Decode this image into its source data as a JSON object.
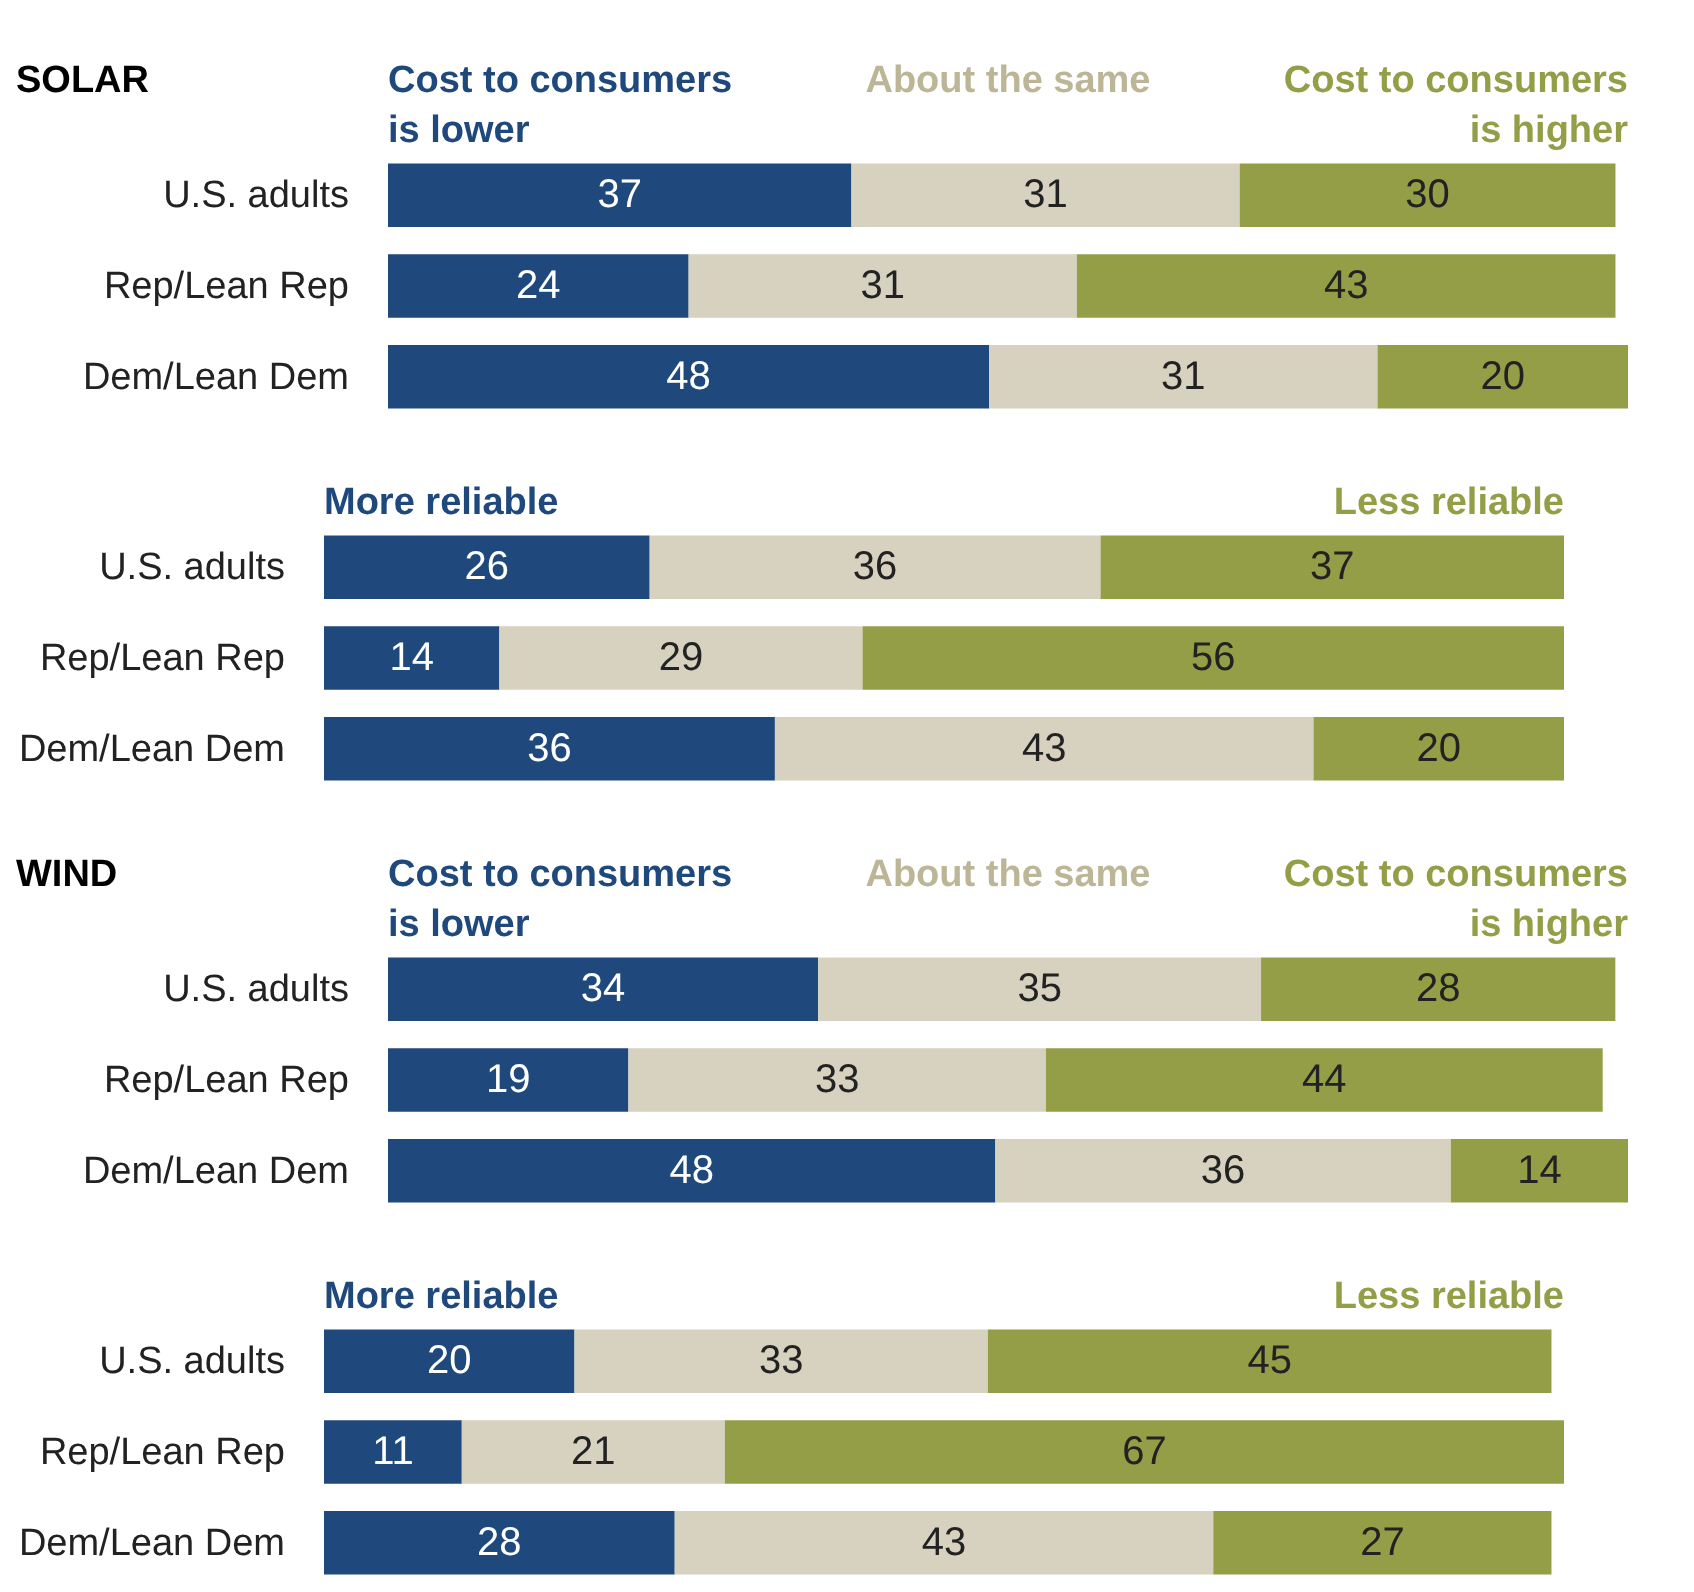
{
  "chart_data": [
    {
      "type": "bar",
      "orientation": "horizontal",
      "stacked": true,
      "title": "SOLAR",
      "categories": [
        "U.S. adults",
        "Rep/Lean Rep",
        "Dem/Lean Dem"
      ],
      "tick_labels": "y",
      "data_labels": true,
      "legend": "top",
      "series": [
        {
          "name": "Cost to consumers is lower",
          "color": "#1f497d",
          "values": [
            37,
            24,
            48
          ]
        },
        {
          "name": "About the same",
          "color": "#d6d2bf",
          "values": [
            31,
            31,
            31
          ]
        },
        {
          "name": "Cost to consumers is higher",
          "color": "#949e47",
          "values": [
            30,
            43,
            20
          ]
        }
      ]
    },
    {
      "type": "bar",
      "orientation": "horizontal",
      "stacked": true,
      "categories": [
        "U.S. adults",
        "Rep/Lean Rep",
        "Dem/Lean Dem"
      ],
      "tick_labels": "y",
      "data_labels": true,
      "legend": "top",
      "series": [
        {
          "name": "More reliable",
          "color": "#1f497d",
          "values": [
            26,
            14,
            36
          ]
        },
        {
          "color": "#d6d2bf",
          "values": [
            36,
            29,
            43
          ]
        },
        {
          "name": "Less reliable",
          "color": "#949e47",
          "values": [
            37,
            56,
            20
          ]
        }
      ]
    },
    {
      "type": "bar",
      "orientation": "horizontal",
      "stacked": true,
      "title": "WIND",
      "categories": [
        "U.S. adults",
        "Rep/Lean Rep",
        "Dem/Lean Dem"
      ],
      "tick_labels": "y",
      "data_labels": true,
      "legend": "top",
      "series": [
        {
          "name": "Cost to consumers is lower",
          "color": "#1f497d",
          "values": [
            34,
            19,
            48
          ]
        },
        {
          "name": "About the same",
          "color": "#d6d2bf",
          "values": [
            35,
            33,
            36
          ]
        },
        {
          "name": "Cost to consumers is higher",
          "color": "#949e47",
          "values": [
            28,
            44,
            14
          ]
        }
      ]
    },
    {
      "type": "bar",
      "orientation": "horizontal",
      "stacked": true,
      "categories": [
        "U.S. adults",
        "Rep/Lean Rep",
        "Dem/Lean Dem"
      ],
      "tick_labels": "y",
      "data_labels": true,
      "legend": "top",
      "series": [
        {
          "name": "More reliable",
          "color": "#1f497d",
          "values": [
            20,
            11,
            28
          ]
        },
        {
          "color": "#d6d2bf",
          "values": [
            33,
            21,
            43
          ]
        },
        {
          "name": "Less reliable",
          "color": "#949e47",
          "values": [
            45,
            67,
            27
          ]
        }
      ]
    }
  ]
}
